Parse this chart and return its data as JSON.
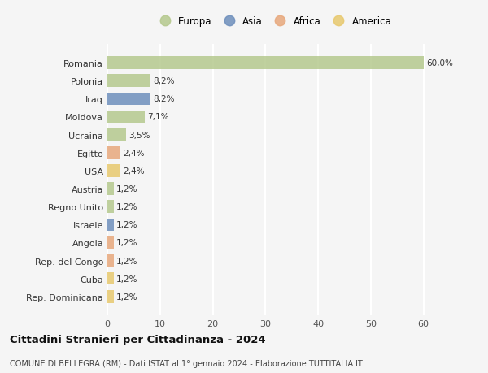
{
  "categories": [
    "Romania",
    "Polonia",
    "Iraq",
    "Moldova",
    "Ucraina",
    "Egitto",
    "USA",
    "Austria",
    "Regno Unito",
    "Israele",
    "Angola",
    "Rep. del Congo",
    "Cuba",
    "Rep. Dominicana"
  ],
  "values": [
    60.0,
    8.2,
    8.2,
    7.1,
    3.5,
    2.4,
    2.4,
    1.2,
    1.2,
    1.2,
    1.2,
    1.2,
    1.2,
    1.2
  ],
  "labels": [
    "60,0%",
    "8,2%",
    "8,2%",
    "7,1%",
    "3,5%",
    "2,4%",
    "2,4%",
    "1,2%",
    "1,2%",
    "1,2%",
    "1,2%",
    "1,2%",
    "1,2%",
    "1,2%"
  ],
  "colors": [
    "#b5c98e",
    "#b5c98e",
    "#6e8fbc",
    "#b5c98e",
    "#b5c98e",
    "#e8a87c",
    "#e8c96e",
    "#b5c98e",
    "#b5c98e",
    "#6e8fbc",
    "#e8a87c",
    "#e8a87c",
    "#e8c96e",
    "#e8c96e"
  ],
  "legend_labels": [
    "Europa",
    "Asia",
    "Africa",
    "America"
  ],
  "legend_colors": [
    "#b5c98e",
    "#6e8fbc",
    "#e8a87c",
    "#e8c96e"
  ],
  "title": "Cittadini Stranieri per Cittadinanza - 2024",
  "subtitle": "COMUNE DI BELLEGRA (RM) - Dati ISTAT al 1° gennaio 2024 - Elaborazione TUTTITALIA.IT",
  "xlim": [
    0,
    63
  ],
  "xticks": [
    0,
    10,
    20,
    30,
    40,
    50,
    60
  ],
  "bg_color": "#f5f5f5",
  "grid_color": "#ffffff",
  "bar_height": 0.7
}
